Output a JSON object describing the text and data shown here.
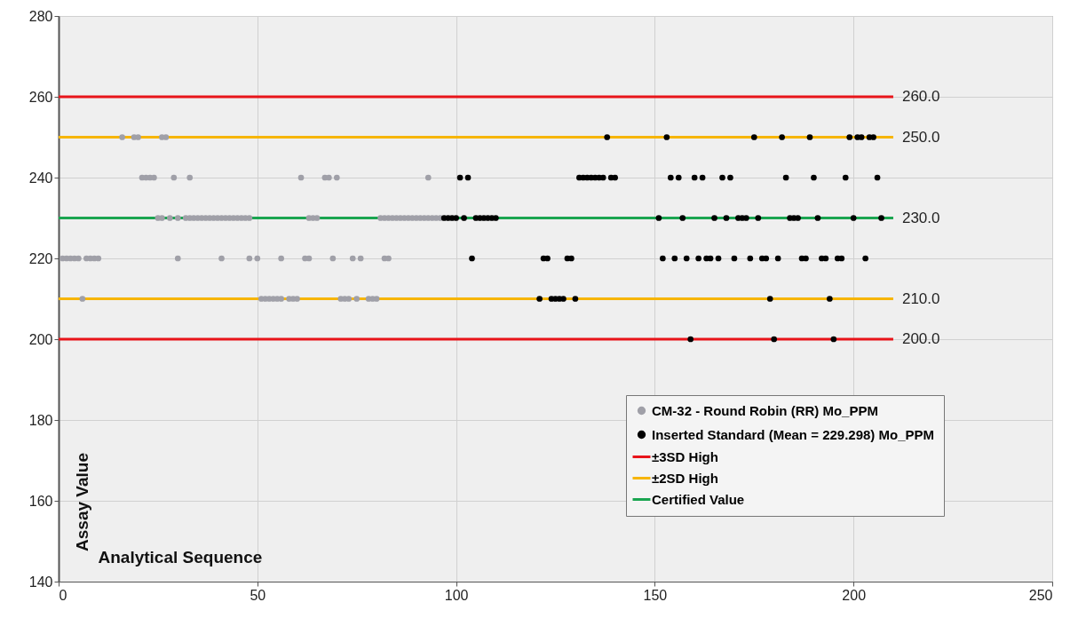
{
  "chart_data": {
    "type": "scatter",
    "xlabel": "Analytical Sequence",
    "ylabel": "Assay Value",
    "xlim": [
      0,
      250
    ],
    "xticks": [
      0,
      50,
      100,
      150,
      200,
      250
    ],
    "ylim": [
      140,
      280
    ],
    "yticks": [
      140,
      160,
      180,
      200,
      220,
      240,
      260,
      280
    ],
    "grid": true,
    "legend": "bottom right",
    "series": [
      {
        "type": "line",
        "name": "±3SD High",
        "color": "#e8141a",
        "x": [
          0,
          210
        ],
        "values": [
          260,
          260
        ],
        "value_labels": [
          null,
          "260.0"
        ]
      },
      {
        "type": "line",
        "name": "±2SD High",
        "color": "#f7b500",
        "x": [
          0,
          210
        ],
        "values": [
          250,
          250
        ],
        "value_labels": [
          null,
          "250.0"
        ]
      },
      {
        "type": "line",
        "name": "Certified Value",
        "color": "#1aa550",
        "x": [
          0,
          210
        ],
        "values": [
          230,
          230
        ],
        "value_labels": [
          null,
          "230.0"
        ]
      },
      {
        "type": "line",
        "color": "#f7b500",
        "x": [
          0,
          210
        ],
        "values": [
          210,
          210
        ],
        "value_labels": [
          null,
          "210.0"
        ]
      },
      {
        "type": "line",
        "color": "#e8141a",
        "x": [
          0,
          210
        ],
        "values": [
          200,
          200
        ],
        "value_labels": [
          null,
          "200.0"
        ]
      },
      {
        "name": "CM-32 - Round Robin (RR) Mo_PPM",
        "color": "#a0a0a8",
        "marker": "circle",
        "x": [
          16,
          19,
          20,
          26,
          27,
          21,
          22,
          23,
          24,
          29,
          33,
          61,
          67,
          68,
          70,
          93,
          25,
          26,
          28,
          30,
          32,
          33,
          34,
          35,
          36,
          37,
          38,
          39,
          40,
          41,
          42,
          43,
          44,
          45,
          46,
          47,
          48,
          63,
          64,
          65,
          81,
          82,
          83,
          84,
          85,
          86,
          87,
          88,
          89,
          90,
          91,
          92,
          93,
          94,
          95,
          96,
          1,
          2,
          3,
          4,
          5,
          7,
          8,
          9,
          10,
          30,
          41,
          48,
          50,
          56,
          62,
          63,
          69,
          74,
          76,
          82,
          83,
          6,
          51,
          52,
          53,
          54,
          55,
          56,
          58,
          59,
          60,
          71,
          72,
          73,
          75,
          78,
          79,
          80
        ],
        "values": [
          250,
          250,
          250,
          250,
          250,
          240,
          240,
          240,
          240,
          240,
          240,
          240,
          240,
          240,
          240,
          240,
          230,
          230,
          230,
          230,
          230,
          230,
          230,
          230,
          230,
          230,
          230,
          230,
          230,
          230,
          230,
          230,
          230,
          230,
          230,
          230,
          230,
          230,
          230,
          230,
          230,
          230,
          230,
          230,
          230,
          230,
          230,
          230,
          230,
          230,
          230,
          230,
          230,
          230,
          230,
          230,
          220,
          220,
          220,
          220,
          220,
          220,
          220,
          220,
          220,
          220,
          220,
          220,
          220,
          220,
          220,
          220,
          220,
          220,
          220,
          220,
          220,
          210,
          210,
          210,
          210,
          210,
          210,
          210,
          210,
          210,
          210,
          210,
          210,
          210,
          210,
          210,
          210,
          210
        ]
      },
      {
        "name": "Inserted Standard (Mean = 229.298) Mo_PPM",
        "color": "#000000",
        "marker": "circle",
        "x": [
          138,
          153,
          175,
          182,
          189,
          199,
          201,
          202,
          204,
          205,
          101,
          103,
          131,
          132,
          133,
          134,
          135,
          136,
          137,
          139,
          140,
          154,
          156,
          160,
          162,
          167,
          169,
          183,
          190,
          198,
          206,
          97,
          98,
          99,
          100,
          102,
          105,
          106,
          107,
          108,
          109,
          110,
          151,
          157,
          165,
          168,
          171,
          172,
          173,
          176,
          184,
          185,
          186,
          191,
          200,
          207,
          104,
          122,
          123,
          128,
          129,
          152,
          155,
          158,
          161,
          163,
          164,
          166,
          170,
          174,
          177,
          178,
          181,
          187,
          188,
          192,
          193,
          196,
          197,
          203,
          121,
          124,
          125,
          126,
          127,
          130,
          179,
          194,
          159,
          180,
          195
        ],
        "values": [
          250,
          250,
          250,
          250,
          250,
          250,
          250,
          250,
          250,
          250,
          240,
          240,
          240,
          240,
          240,
          240,
          240,
          240,
          240,
          240,
          240,
          240,
          240,
          240,
          240,
          240,
          240,
          240,
          240,
          240,
          240,
          230,
          230,
          230,
          230,
          230,
          230,
          230,
          230,
          230,
          230,
          230,
          230,
          230,
          230,
          230,
          230,
          230,
          230,
          230,
          230,
          230,
          230,
          230,
          230,
          230,
          220,
          220,
          220,
          220,
          220,
          220,
          220,
          220,
          220,
          220,
          220,
          220,
          220,
          220,
          220,
          220,
          220,
          220,
          220,
          220,
          220,
          220,
          220,
          220,
          210,
          210,
          210,
          210,
          210,
          210,
          210,
          210,
          200,
          200,
          200
        ]
      }
    ]
  }
}
